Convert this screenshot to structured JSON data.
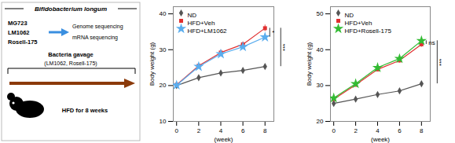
{
  "chart_data": [
    {
      "type": "diagram",
      "title": "Bifidobacterium longum",
      "annotations": [
        "MG723",
        "LM1062",
        "Rosell-175",
        "Genome sequencing",
        "mRNA sequencing",
        "Bacteria gavage",
        "(LM1062, Rosell-175)",
        "HFD for 8 weeks"
      ]
    },
    {
      "type": "line",
      "x": [
        0,
        2,
        4,
        6,
        8
      ],
      "xlabel": "(week)",
      "ylabel": "Body weight (g)",
      "xlim": [
        -0.3,
        8.8
      ],
      "xticks": [
        0,
        2,
        4,
        6,
        8
      ],
      "ylim": [
        10,
        42
      ],
      "yticks": [
        10,
        20,
        30,
        40
      ],
      "grid": false,
      "legend": "upper left",
      "series": [
        {
          "name": "ND",
          "color": "#555555",
          "marker": "diamond",
          "values": [
            20.0,
            22.2,
            23.5,
            24.2,
            25.3
          ],
          "yerr": [
            0.3,
            0.5,
            0.5,
            0.4,
            0.5
          ]
        },
        {
          "name": "HFD+Veh",
          "color": "#e03030",
          "marker": "square",
          "values": [
            20.2,
            25.5,
            29.2,
            31.5,
            36.0
          ],
          "yerr": [
            0.3,
            0.6,
            0.7,
            0.7,
            0.9
          ]
        },
        {
          "name": "HFD+LM1062",
          "color": "#5aadee",
          "marker": "star",
          "values": [
            20.1,
            25.3,
            28.8,
            30.8,
            33.5
          ],
          "yerr": [
            0.3,
            0.6,
            0.6,
            0.6,
            0.7
          ]
        }
      ],
      "annotations": [
        {
          "text": "*",
          "series": [
            "HFD+LM1062",
            "HFD+Veh"
          ]
        },
        {
          "text": "***",
          "series": [
            "ND",
            "HFD+Veh"
          ]
        }
      ]
    },
    {
      "type": "line",
      "x": [
        0,
        2,
        4,
        6,
        8
      ],
      "xlabel": "(week)",
      "ylabel": "Body weight (g)",
      "xlim": [
        -0.3,
        8.8
      ],
      "xticks": [
        0,
        2,
        4,
        6,
        8
      ],
      "ylim": [
        20,
        52
      ],
      "yticks": [
        20,
        30,
        40,
        50
      ],
      "grid": false,
      "legend": "upper left",
      "series": [
        {
          "name": "ND",
          "color": "#555555",
          "marker": "diamond",
          "values": [
            25.0,
            26.2,
            27.5,
            28.5,
            30.5
          ],
          "yerr": [
            0.3,
            0.4,
            0.4,
            0.5,
            0.5
          ]
        },
        {
          "name": "HFD+Veh",
          "color": "#e03030",
          "marker": "square",
          "values": [
            26.2,
            30.2,
            34.5,
            37.0,
            41.5
          ],
          "yerr": [
            0.4,
            0.5,
            0.6,
            0.7,
            0.8
          ]
        },
        {
          "name": "HFD+Rosell-175",
          "color": "#33bb33",
          "marker": "star",
          "values": [
            26.5,
            30.5,
            35.0,
            37.5,
            42.5
          ],
          "yerr": [
            0.4,
            0.5,
            0.7,
            0.7,
            0.8
          ]
        }
      ],
      "annotations": [
        {
          "text": "ns",
          "series": [
            "HFD+Veh",
            "HFD+Rosell-175"
          ]
        },
        {
          "text": "***",
          "series": [
            "ND",
            "HFD+Rosell-175"
          ]
        }
      ]
    }
  ]
}
